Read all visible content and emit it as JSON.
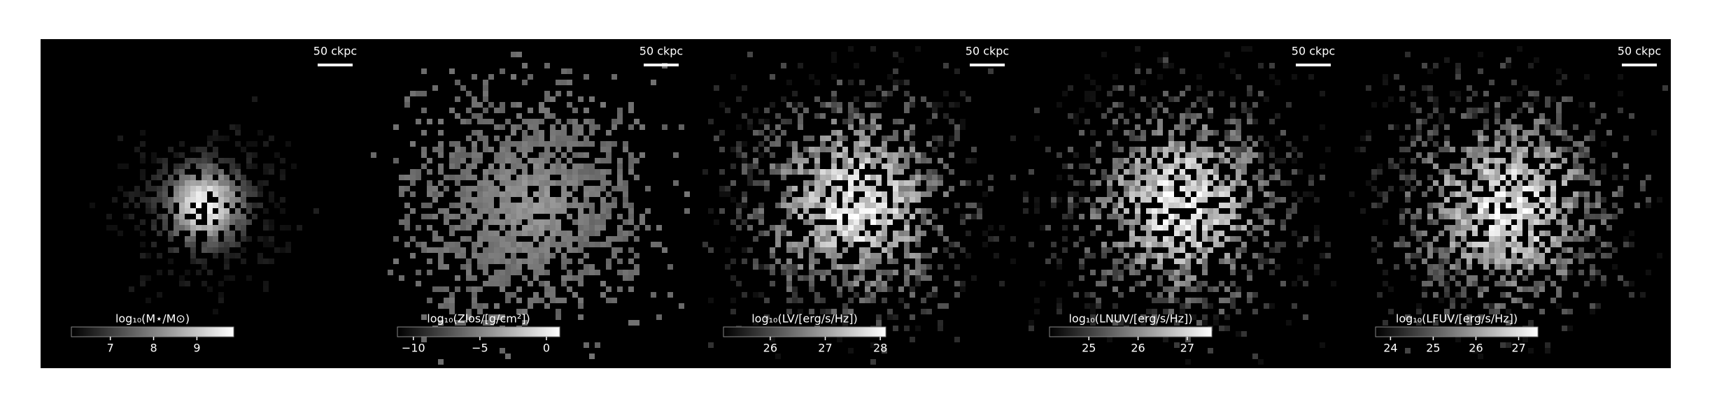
{
  "chart_data": [
    {
      "type": "image",
      "colorbar_label": "log₁₀(M⋆/M⊙)",
      "xlim": [
        6.1,
        9.85
      ],
      "xticks": [
        7,
        8,
        9
      ],
      "scalebar_label": "50 ckpc",
      "spread": "compact"
    },
    {
      "type": "image",
      "colorbar_label": "log₁₀(Zlos/[g/cm²])",
      "xlim": [
        -11.2,
        1.0
      ],
      "xticks": [
        {
          "value": -10,
          "label": "−10"
        },
        {
          "value": -5,
          "label": "−5"
        },
        0
      ],
      "scalebar_label": "50 ckpc",
      "spread": "flat"
    },
    {
      "type": "image",
      "colorbar_label": "log₁₀(LV/[erg/s/Hz])",
      "xlim": [
        25.15,
        28.1
      ],
      "xticks": [
        26,
        27,
        28
      ],
      "scalebar_label": "50 ckpc",
      "spread": "noisy"
    },
    {
      "type": "image",
      "colorbar_label": "log₁₀(LNUV/[erg/s/Hz])",
      "xlim": [
        24.2,
        27.5
      ],
      "xticks": [
        25,
        26,
        27
      ],
      "scalebar_label": "50 ckpc",
      "spread": "noisy"
    },
    {
      "type": "image",
      "colorbar_label": "log₁₀(LFUV/[erg/s/Hz])",
      "xlim": [
        23.65,
        27.45
      ],
      "xticks": [
        24,
        25,
        26,
        27
      ],
      "scalebar_label": "50 ckpc",
      "spread": "noisy"
    }
  ]
}
